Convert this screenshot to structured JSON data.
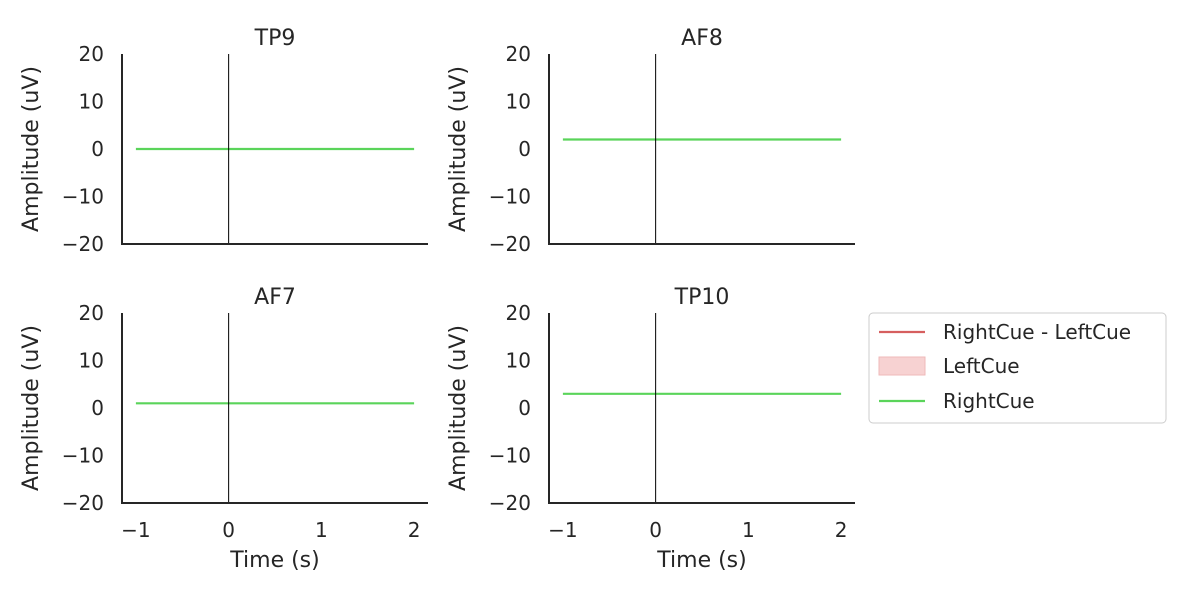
{
  "colors": {
    "difference": "#d65f5f",
    "left": "#f7d2d2",
    "right": "#5ad45a",
    "axis": "#262626"
  },
  "legend": {
    "position": "right",
    "items": [
      {
        "label": "RightCue - LeftCue",
        "kind": "line",
        "series": "difference"
      },
      {
        "label": "LeftCue",
        "kind": "patch",
        "series": "left"
      },
      {
        "label": "RightCue",
        "kind": "line",
        "series": "right"
      }
    ]
  },
  "chart_data": [
    {
      "type": "line",
      "title": "TP9",
      "ylabel": "Amplitude (uV)",
      "xlabel": "",
      "xlim": [
        -1.15,
        2.15
      ],
      "ylim": [
        -20,
        20
      ],
      "xticks": [
        -1,
        0,
        1,
        2
      ],
      "xtick_labels": [],
      "yticks": [
        -20,
        -10,
        0,
        10,
        20
      ],
      "ytick_labels": [
        "−20",
        "−10",
        "0",
        "10",
        "20"
      ],
      "vline_x": 0,
      "series": [
        {
          "name": "RightCue",
          "key": "right",
          "x": [
            -1,
            2
          ],
          "y": [
            0,
            0
          ]
        }
      ]
    },
    {
      "type": "line",
      "title": "AF8",
      "ylabel": "Amplitude (uV)",
      "xlabel": "",
      "xlim": [
        -1.15,
        2.15
      ],
      "ylim": [
        -20,
        20
      ],
      "xticks": [
        -1,
        0,
        1,
        2
      ],
      "xtick_labels": [],
      "yticks": [
        -20,
        -10,
        0,
        10,
        20
      ],
      "ytick_labels": [
        "−20",
        "−10",
        "0",
        "10",
        "20"
      ],
      "vline_x": 0,
      "series": [
        {
          "name": "RightCue",
          "key": "right",
          "x": [
            -1,
            2
          ],
          "y": [
            2,
            2
          ]
        }
      ]
    },
    {
      "type": "line",
      "title": "AF7",
      "ylabel": "Amplitude (uV)",
      "xlabel": "Time (s)",
      "xlim": [
        -1.15,
        2.15
      ],
      "ylim": [
        -20,
        20
      ],
      "xticks": [
        -1,
        0,
        1,
        2
      ],
      "xtick_labels": [
        "−1",
        "0",
        "1",
        "2"
      ],
      "yticks": [
        -20,
        -10,
        0,
        10,
        20
      ],
      "ytick_labels": [
        "−20",
        "−10",
        "0",
        "10",
        "20"
      ],
      "vline_x": 0,
      "series": [
        {
          "name": "RightCue",
          "key": "right",
          "x": [
            -1,
            2
          ],
          "y": [
            1,
            1
          ]
        }
      ]
    },
    {
      "type": "line",
      "title": "TP10",
      "ylabel": "Amplitude (uV)",
      "xlabel": "Time (s)",
      "xlim": [
        -1.15,
        2.15
      ],
      "ylim": [
        -20,
        20
      ],
      "xticks": [
        -1,
        0,
        1,
        2
      ],
      "xtick_labels": [
        "−1",
        "0",
        "1",
        "2"
      ],
      "yticks": [
        -20,
        -10,
        0,
        10,
        20
      ],
      "ytick_labels": [
        "−20",
        "−10",
        "0",
        "10",
        "20"
      ],
      "vline_x": 0,
      "series": [
        {
          "name": "RightCue",
          "key": "right",
          "x": [
            -1,
            2
          ],
          "y": [
            3,
            3
          ]
        }
      ]
    }
  ]
}
